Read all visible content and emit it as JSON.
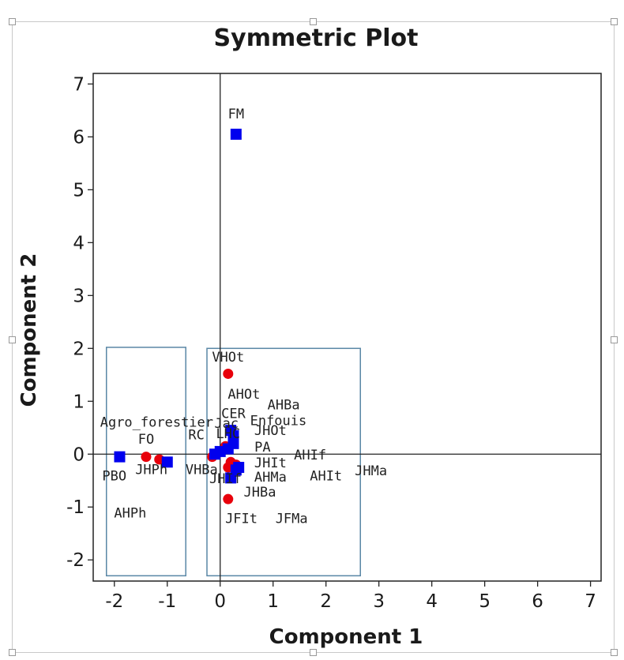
{
  "chart_data": {
    "type": "scatter",
    "title": "Symmetric Plot",
    "xlabel": "Component 1",
    "ylabel": "Component 2",
    "xlim": [
      -2.4,
      7.2
    ],
    "ylim": [
      -2.4,
      7.2
    ],
    "xticks": [
      -2,
      -1,
      0,
      1,
      2,
      3,
      4,
      5,
      6,
      7
    ],
    "yticks": [
      -2,
      -1,
      0,
      1,
      2,
      3,
      4,
      5,
      6,
      7
    ],
    "reference_lines": {
      "x": 0,
      "y": 0
    },
    "grid": false,
    "colors": {
      "series_red": "#e8000b",
      "series_blue": "#0000ee",
      "box": "#5a87a6"
    },
    "series": [
      {
        "marker": "circle",
        "color": "#e8000b",
        "points": [
          {
            "x": 0.15,
            "y": 1.52
          },
          {
            "x": 0.15,
            "y": -0.85
          },
          {
            "x": -1.4,
            "y": -0.05
          },
          {
            "x": -1.15,
            "y": -0.1
          },
          {
            "x": -0.15,
            "y": -0.05
          },
          {
            "x": 0.0,
            "y": 0.05
          },
          {
            "x": 0.1,
            "y": 0.15
          },
          {
            "x": 0.25,
            "y": 0.3
          },
          {
            "x": 0.2,
            "y": -0.15
          },
          {
            "x": 0.15,
            "y": -0.25
          },
          {
            "x": 0.3,
            "y": -0.2
          }
        ]
      },
      {
        "marker": "square",
        "color": "#0000ee",
        "points": [
          {
            "x": 0.3,
            "y": 6.05
          },
          {
            "x": -1.9,
            "y": -0.05
          },
          {
            "x": -1.0,
            "y": -0.15
          },
          {
            "x": -0.1,
            "y": 0.0
          },
          {
            "x": 0.0,
            "y": 0.05
          },
          {
            "x": 0.15,
            "y": 0.1
          },
          {
            "x": 0.2,
            "y": 0.45
          },
          {
            "x": 0.25,
            "y": 0.35
          },
          {
            "x": 0.3,
            "y": -0.3
          },
          {
            "x": 0.2,
            "y": -0.45
          },
          {
            "x": 0.25,
            "y": 0.2
          },
          {
            "x": 0.35,
            "y": -0.25
          }
        ]
      }
    ],
    "labels": [
      {
        "text": "FM",
        "x": 0.3,
        "y": 6.35
      },
      {
        "text": "VHOt",
        "x": 0.15,
        "y": 1.75
      },
      {
        "text": "AHOt",
        "x": 0.45,
        "y": 1.05
      },
      {
        "text": "AHBa",
        "x": 1.2,
        "y": 0.85
      },
      {
        "text": "CER",
        "x": 0.25,
        "y": 0.68
      },
      {
        "text": "Agro_forestier",
        "x": -1.2,
        "y": 0.52
      },
      {
        "text": "Enfouis",
        "x": 1.1,
        "y": 0.55
      },
      {
        "text": "Jac",
        "x": 0.12,
        "y": 0.5
      },
      {
        "text": "JHOt",
        "x": 0.95,
        "y": 0.36
      },
      {
        "text": "FO",
        "x": -1.4,
        "y": 0.2
      },
      {
        "text": "RC",
        "x": -0.45,
        "y": 0.28
      },
      {
        "text": "LHC",
        "x": 0.15,
        "y": 0.3
      },
      {
        "text": "PA",
        "x": 0.8,
        "y": 0.05
      },
      {
        "text": "JHIt",
        "x": 0.95,
        "y": -0.25
      },
      {
        "text": "AHIf",
        "x": 1.7,
        "y": -0.1
      },
      {
        "text": "JHPh",
        "x": -1.3,
        "y": -0.38
      },
      {
        "text": "VHBa",
        "x": -0.35,
        "y": -0.38
      },
      {
        "text": "AHMa",
        "x": 0.95,
        "y": -0.52
      },
      {
        "text": "JHIf",
        "x": 0.1,
        "y": -0.55
      },
      {
        "text": "AHIt",
        "x": 2.0,
        "y": -0.5
      },
      {
        "text": "JHMa",
        "x": 2.85,
        "y": -0.4
      },
      {
        "text": "PBO",
        "x": -2.0,
        "y": -0.5
      },
      {
        "text": "JHBa",
        "x": 0.75,
        "y": -0.8
      },
      {
        "text": "AHPh",
        "x": -1.7,
        "y": -1.2
      },
      {
        "text": "JFIt",
        "x": 0.4,
        "y": -1.3
      },
      {
        "text": "JFMa",
        "x": 1.35,
        "y": -1.3
      }
    ],
    "boxes": [
      {
        "x0": -2.15,
        "x1": -0.65,
        "y0": -2.3,
        "y1": 2.02
      },
      {
        "x0": -0.25,
        "x1": 2.65,
        "y0": -2.3,
        "y1": 2.0
      }
    ]
  }
}
